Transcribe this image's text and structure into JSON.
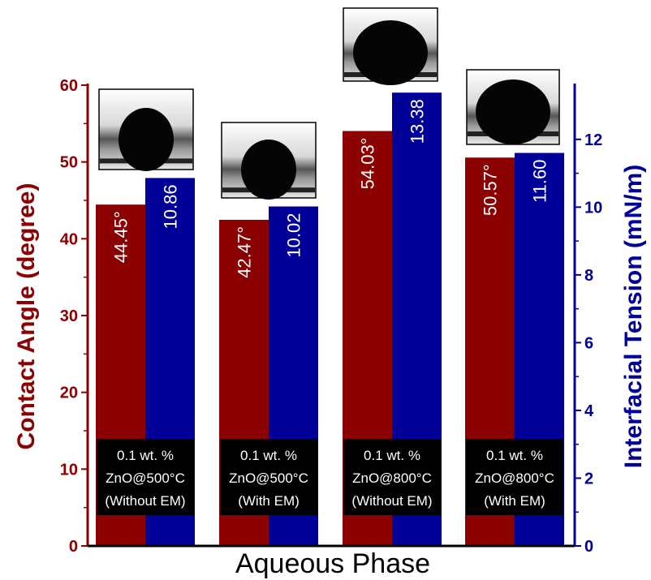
{
  "colors": {
    "contact_angle": "#8b0000",
    "interfacial_tension": "#000099",
    "label_box": "#000000"
  },
  "chart_data": {
    "type": "bar",
    "categories": [
      [
        "0.1 wt. %",
        "ZnO@500°C",
        "(Without EM)"
      ],
      [
        "0.1 wt. %",
        "ZnO@500°C",
        "(With EM)"
      ],
      [
        "0.1 wt. %",
        "ZnO@800°C",
        "(Without EM)"
      ],
      [
        "0.1 wt. %",
        "ZnO@800°C",
        "(With EM)"
      ]
    ],
    "series": [
      {
        "axis": "left",
        "color": "#8b0000",
        "values": [
          44.45,
          42.47,
          54.03,
          50.57
        ],
        "labels": [
          "44.45°",
          "42.47°",
          "54.03°",
          "50.57°"
        ]
      },
      {
        "axis": "right",
        "color": "#000099",
        "values": [
          10.86,
          10.02,
          13.38,
          11.6
        ],
        "labels": [
          "10.86",
          "10.02",
          "13.38",
          "11.60"
        ]
      }
    ],
    "xlabel": "Aqueous Phase",
    "ylabel": "Contact Angle (degree)",
    "ylabel_right": "Interfacial Tension (mN/m)",
    "ylim": [
      0,
      60
    ],
    "ylim_right": [
      0,
      13.6
    ],
    "yticks": [
      0,
      10,
      20,
      30,
      40,
      50,
      60
    ],
    "yticks_right": [
      0,
      2,
      4,
      6,
      8,
      10,
      12
    ],
    "grid": false,
    "legend": "none",
    "insets": [
      "droplet photo",
      "droplet photo",
      "droplet photo",
      "droplet photo"
    ]
  }
}
